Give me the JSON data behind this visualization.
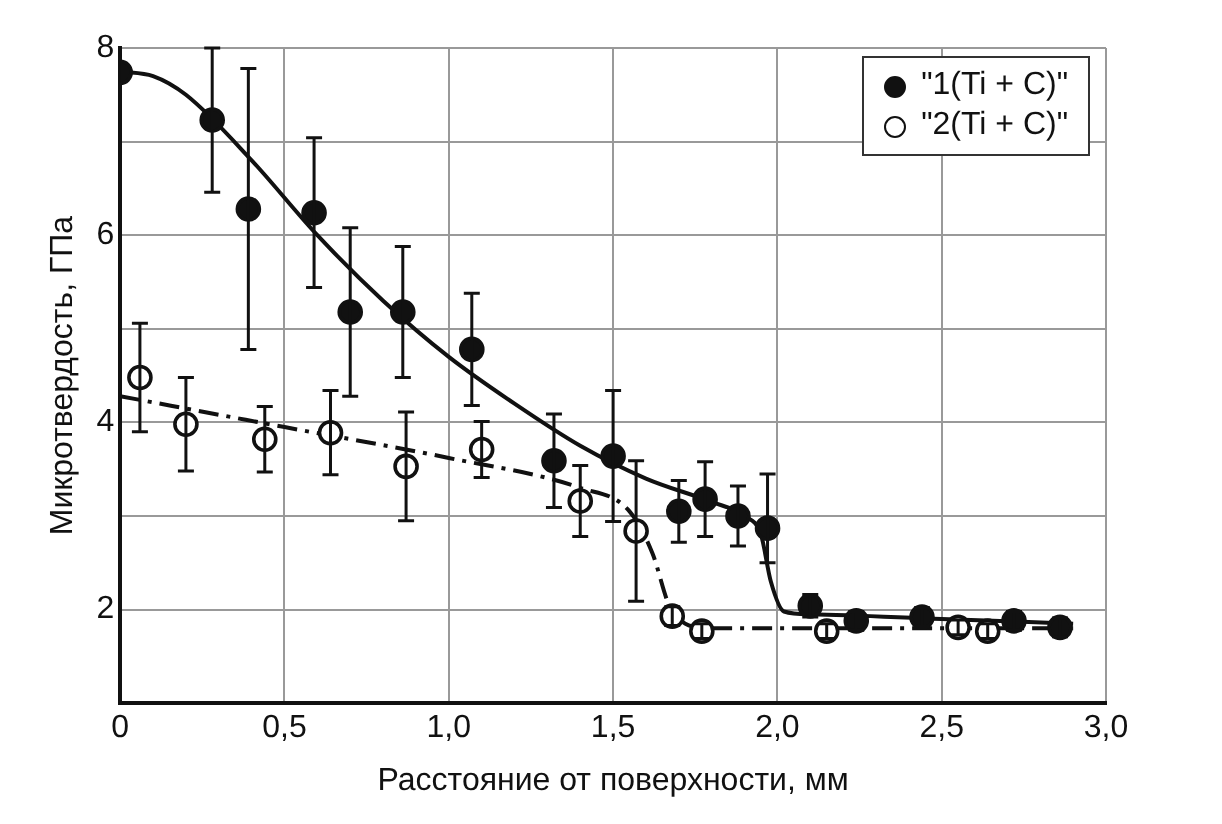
{
  "chart_data": {
    "type": "scatter",
    "xlabel": "Расстояние от поверхности, мм",
    "ylabel": "Микротвердость, ГПа",
    "xlim": [
      0,
      3
    ],
    "ylim": [
      1,
      8
    ],
    "xticks": [
      0,
      {
        "value": 0.5,
        "label": "0,5"
      },
      {
        "value": 1,
        "label": "1,0"
      },
      {
        "value": 1.5,
        "label": "1,5"
      },
      {
        "value": 2,
        "label": "2,0"
      },
      {
        "value": 2.5,
        "label": "2,5"
      },
      {
        "value": 3,
        "label": "3,0"
      }
    ],
    "yticks": [
      {
        "value": 1,
        "label": null
      },
      2,
      {
        "value": 3,
        "label": null
      },
      4,
      {
        "value": 5,
        "label": null
      },
      6,
      {
        "value": 7,
        "label": null
      },
      8
    ],
    "grid": true,
    "legend": "top right",
    "series": [
      {
        "name": "\"1(Ti + C)\"",
        "color": "#111111",
        "marker": "circle",
        "x": [
          0,
          0.28,
          0.39,
          0.59,
          0.7,
          0.86,
          1.07,
          1.32,
          1.5,
          1.7,
          1.78,
          1.88,
          1.97,
          2.1,
          2.24,
          2.44,
          2.72,
          2.86
        ],
        "values": [
          7.74,
          7.23,
          6.28,
          6.24,
          5.18,
          5.18,
          4.78,
          3.59,
          3.64,
          3.05,
          3.18,
          3.0,
          2.87,
          2.04,
          1.88,
          1.92,
          1.88,
          1.81
        ],
        "errors": [
          null,
          0.77,
          1.5,
          0.8,
          0.9,
          0.7,
          0.6,
          0.5,
          0.7,
          0.33,
          0.4,
          0.32,
          [
            2.5,
            3.45
          ],
          0.12,
          0.1,
          0.1,
          0.1,
          0.1
        ]
      },
      {
        "name": "\"2(Ti + C)\"",
        "color": "#ffffff",
        "marker": "circle",
        "x": [
          0.06,
          0.2,
          0.44,
          0.64,
          0.87,
          1.1,
          1.4,
          1.57,
          1.68,
          1.77,
          2.15,
          2.55,
          2.64
        ],
        "values": [
          4.48,
          3.98,
          3.82,
          3.89,
          3.53,
          3.71,
          3.16,
          2.84,
          1.93,
          1.77,
          1.77,
          1.81,
          1.77
        ],
        "errors": [
          0.58,
          0.5,
          0.35,
          0.45,
          0.58,
          0.3,
          0.38,
          0.75,
          0.1,
          0.08,
          0.08,
          0.08,
          0.08
        ]
      },
      {
        "type": "line",
        "color": "#111111",
        "marker": "none",
        "line_style": "solid",
        "x": [
          0,
          0.1,
          0.2,
          0.4,
          0.6,
          0.8,
          1.0,
          1.2,
          1.4,
          1.6,
          1.8,
          1.9,
          1.95,
          1.98,
          2.02,
          2.1,
          2.5,
          2.9
        ],
        "values": [
          7.75,
          7.7,
          7.5,
          6.8,
          6.0,
          5.3,
          4.7,
          4.2,
          3.75,
          3.4,
          3.15,
          3.0,
          2.8,
          2.3,
          1.98,
          1.95,
          1.9,
          1.85
        ]
      },
      {
        "type": "line",
        "color": "#111111",
        "marker": "none",
        "line_style": "dashed",
        "x": [
          0,
          0.5,
          1.0,
          1.4,
          1.55,
          1.62,
          1.67,
          1.72,
          1.8,
          2.9
        ],
        "values": [
          4.28,
          3.95,
          3.62,
          3.3,
          3.05,
          2.6,
          2.05,
          1.85,
          1.8,
          1.8
        ]
      }
    ]
  }
}
